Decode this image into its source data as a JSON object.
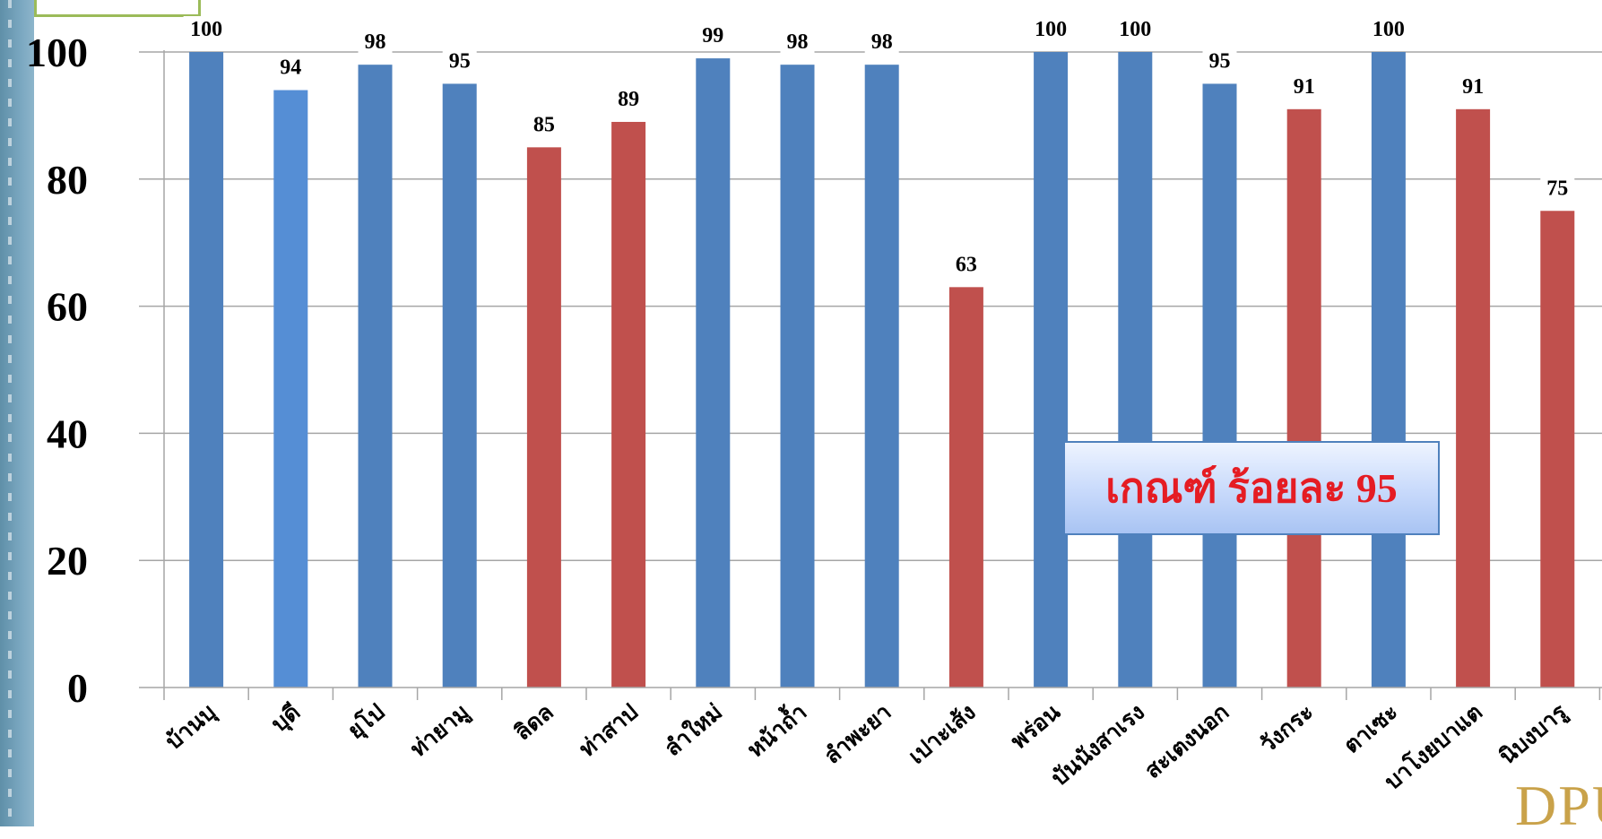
{
  "chart_data": {
    "type": "bar",
    "categories": [
      "บ้านบุ",
      "บุดี",
      "ยุโป",
      "ท่ายามู",
      "ลิดล",
      "ท่าสาป",
      "ลำใหม่",
      "หน้าถ้ำ",
      "ลำพะยา",
      "เปาะเส้ง",
      "พร่อน",
      "บันนังสาเรง",
      "สะเตงนอก",
      "วังกระ",
      "ตาเซะ",
      "บาโงยบาแต",
      "นิบงบารู"
    ],
    "values": [
      100,
      94,
      98,
      95,
      85,
      89,
      99,
      98,
      98,
      63,
      100,
      100,
      95,
      91,
      100,
      91,
      75
    ],
    "data_labels": [
      "100",
      "94",
      "98",
      "95",
      "85",
      "89",
      "99",
      "98",
      "98",
      "63",
      "100",
      "100",
      "95",
      "91",
      "100",
      "91",
      "75"
    ],
    "bar_colors": [
      "#4f81bd",
      "#558ed5",
      "#4f81bd",
      "#4f81bd",
      "#c0504d",
      "#c0504d",
      "#4f81bd",
      "#4f81bd",
      "#4f81bd",
      "#c0504d",
      "#4f81bd",
      "#4f81bd",
      "#4f81bd",
      "#c0504d",
      "#4f81bd",
      "#c0504d",
      "#c0504d"
    ],
    "y_ticks": [
      "0",
      "20",
      "40",
      "60",
      "80",
      "100"
    ],
    "ylim": [
      0,
      100
    ],
    "grid": true,
    "title": "",
    "xlabel": "",
    "ylabel": ""
  },
  "criterion": {
    "label": "เกณฑ์ ร้อยละ 95"
  },
  "logo": {
    "text": "DPU"
  },
  "colors": {
    "blue": "#4f81bd",
    "red": "#c0504d",
    "grid": "#a6a6a6",
    "criterion_text": "#e51c23"
  }
}
